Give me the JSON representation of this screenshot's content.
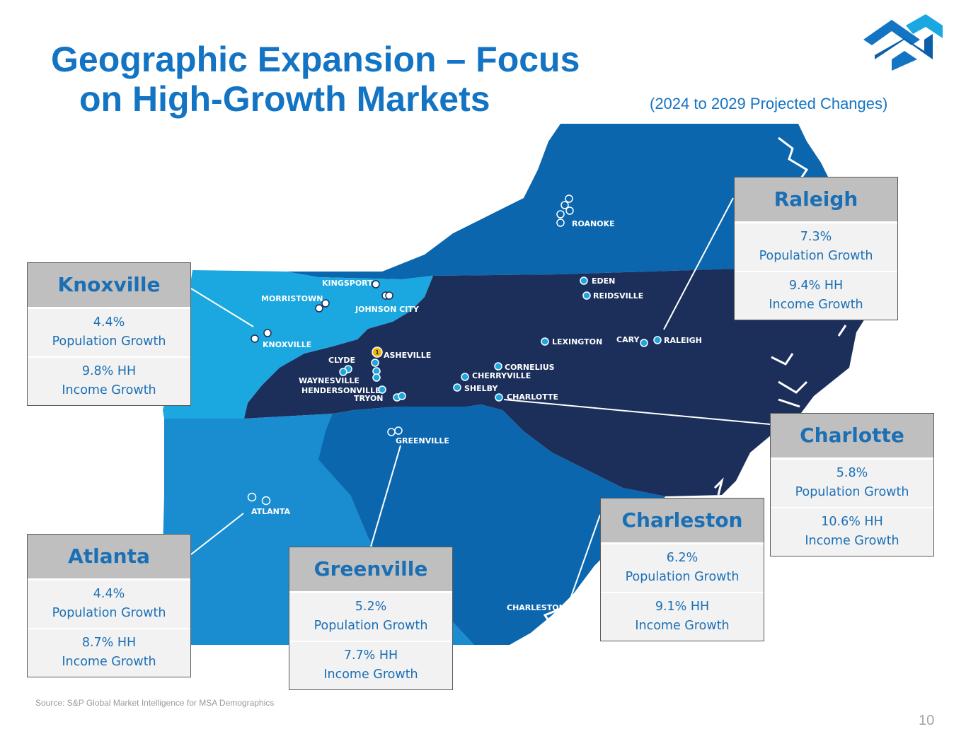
{
  "title_line1": "Geographic Expansion – Focus",
  "title_line2": "on High-Growth Markets",
  "subtitle": "(2024 to 2029 Projected Changes)",
  "colors": {
    "title": "#1474c4",
    "region_light": "#1ba7e0",
    "region_medium": "#0d79c2",
    "region_mid_dark": "#0b66ae",
    "region_dark": "#1b2f5a",
    "card_header_bg": "#bfbfbf",
    "card_body_bg": "#f2f2f2",
    "card_text": "#1b6fb5"
  },
  "cities": {
    "roanoke": "ROANOKE",
    "kingsport": "KINGSPORT",
    "morristown": "MORRISTOWN",
    "johnson_city": "JOHNSON CITY",
    "knoxville": "KNOXVILLE",
    "eden": "EDEN",
    "reidsville": "REIDSVILLE",
    "lexington": "LEXINGTON",
    "cary": "CARY",
    "raleigh": "RALEIGH",
    "asheville": "ASHEVILLE",
    "clyde": "CLYDE",
    "waynesville": "WAYNESVILLE",
    "hendersonville": "HENDERSONVILLE",
    "tryon": "TRYON",
    "cornelius": "CORNELIUS",
    "cherryville": "CHERRYVILLE",
    "shelby": "SHELBY",
    "charlotte": "CHARLOTTE",
    "greenville": "GREENVILLE",
    "atlanta": "ATLANTA",
    "charleston": "CHARLESTON"
  },
  "markets": {
    "knoxville": {
      "name": "Knoxville",
      "pop": "4.4%",
      "pop_label": "Population Growth",
      "hh": "9.8% HH",
      "hh_label": "Income Growth"
    },
    "raleigh": {
      "name": "Raleigh",
      "pop": "7.3%",
      "pop_label": "Population Growth",
      "hh": "9.4% HH",
      "hh_label": "Income Growth"
    },
    "charlotte": {
      "name": "Charlotte",
      "pop": "5.8%",
      "pop_label": "Population Growth",
      "hh": "10.6% HH",
      "hh_label": "Income Growth"
    },
    "charleston": {
      "name": "Charleston",
      "pop": "6.2%",
      "pop_label": "Population Growth",
      "hh": "9.1% HH",
      "hh_label": "Income Growth"
    },
    "atlanta": {
      "name": "Atlanta",
      "pop": "4.4%",
      "pop_label": "Population Growth",
      "hh": "8.7% HH",
      "hh_label": "Income Growth"
    },
    "greenville": {
      "name": "Greenville",
      "pop": "5.2%",
      "pop_label": "Population Growth",
      "hh": "7.7% HH",
      "hh_label": "Income Growth"
    }
  },
  "asheville_badge": "1",
  "source": "Source: S&P Global Market Intelligence for MSA Demographics",
  "page_number": "10"
}
